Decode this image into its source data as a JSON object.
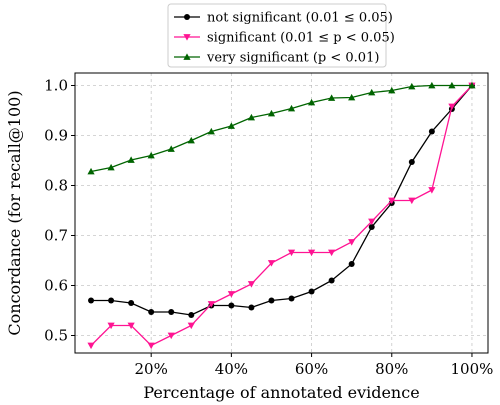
{
  "chart_data": {
    "type": "line",
    "xlabel": "Percentage of annotated evidence",
    "ylabel": "Concordance (for recall@100)",
    "xlim": [
      1,
      104
    ],
    "ylim": [
      0.465,
      1.025
    ],
    "x_ticks": [
      20,
      40,
      60,
      80,
      100
    ],
    "x_tick_labels": [
      "20%",
      "40%",
      "60%",
      "80%",
      "100%"
    ],
    "y_ticks": [
      0.5,
      0.6,
      0.7,
      0.8,
      0.9,
      1.0
    ],
    "y_tick_labels": [
      "0.5",
      "0.6",
      "0.7",
      "0.8",
      "0.9",
      "1.0"
    ],
    "grid": true,
    "legend_position": "top-center, outside plot",
    "x": [
      5,
      10,
      15,
      20,
      25,
      30,
      35,
      40,
      45,
      50,
      55,
      60,
      65,
      70,
      75,
      80,
      85,
      90,
      95,
      100
    ],
    "series": [
      {
        "name": "not significant (0.01 ≤ 0.05)",
        "color": "#000000",
        "marker": "circle",
        "values": [
          0.57,
          0.57,
          0.565,
          0.547,
          0.547,
          0.541,
          0.56,
          0.56,
          0.556,
          0.57,
          0.574,
          0.588,
          0.61,
          0.643,
          0.717,
          0.765,
          0.847,
          0.908,
          0.953,
          1.0
        ]
      },
      {
        "name": "significant (0.01 ≤ p < 0.05)",
        "color": "#ff1493",
        "marker": "triangle-down",
        "values": [
          0.48,
          0.52,
          0.52,
          0.48,
          0.5,
          0.52,
          0.563,
          0.583,
          0.603,
          0.645,
          0.666,
          0.666,
          0.666,
          0.687,
          0.728,
          0.77,
          0.77,
          0.791,
          0.958,
          1.0
        ]
      },
      {
        "name": "very significant (p < 0.01)",
        "color": "#006400",
        "marker": "triangle-up",
        "values": [
          0.828,
          0.836,
          0.851,
          0.86,
          0.873,
          0.89,
          0.908,
          0.919,
          0.936,
          0.944,
          0.954,
          0.966,
          0.975,
          0.976,
          0.986,
          0.99,
          0.998,
          1.0,
          1.0,
          1.0
        ]
      }
    ]
  }
}
